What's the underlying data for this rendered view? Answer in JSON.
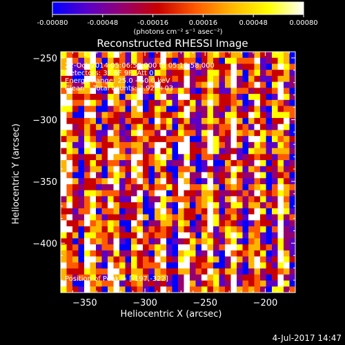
{
  "colorbar": {
    "ticks": [
      "-0.00080",
      "-0.00048",
      "-0.00016",
      "0.00016",
      "0.00048",
      "0.00080"
    ],
    "units": "(photons cm⁻² s⁻¹ asec⁻²)"
  },
  "chart_data": {
    "type": "heatmap",
    "title": "Reconstructed RHESSI Image",
    "xlabel": "Heliocentric X (arcsec)",
    "ylabel": "Heliocentric Y (arcsec)",
    "xlim": [
      -370,
      -175
    ],
    "ylim": [
      -440,
      -245
    ],
    "xticks": [
      -350,
      -300,
      -250,
      -200
    ],
    "yticks": [
      -400,
      -350,
      -300,
      -250
    ],
    "xtick_labels": [
      "−350",
      "−300",
      "−250",
      "−200"
    ],
    "ytick_labels": [
      "−400",
      "−350",
      "−300",
      "−250"
    ],
    "color_range": [
      -0.0008,
      0.0008
    ],
    "colormap": [
      "#0000ff",
      "#5a00c8",
      "#96006e",
      "#c80000",
      "#ff5a00",
      "#ffb400",
      "#ffff00",
      "#ffffff"
    ],
    "annotations": [
      "22-Oct-2014 05:06:58.000 to 05:18:58.000",
      "Detectors: 3F 6F 9F, Att 0",
      "Energy Range: 25.0 - 50.0 keV",
      "Clean    Total counts: 3.92E+03"
    ],
    "peak_label": "Position of Peak = [-197,-322]"
  },
  "footer": {
    "timestamp": "4-Jul-2017 14:47"
  }
}
